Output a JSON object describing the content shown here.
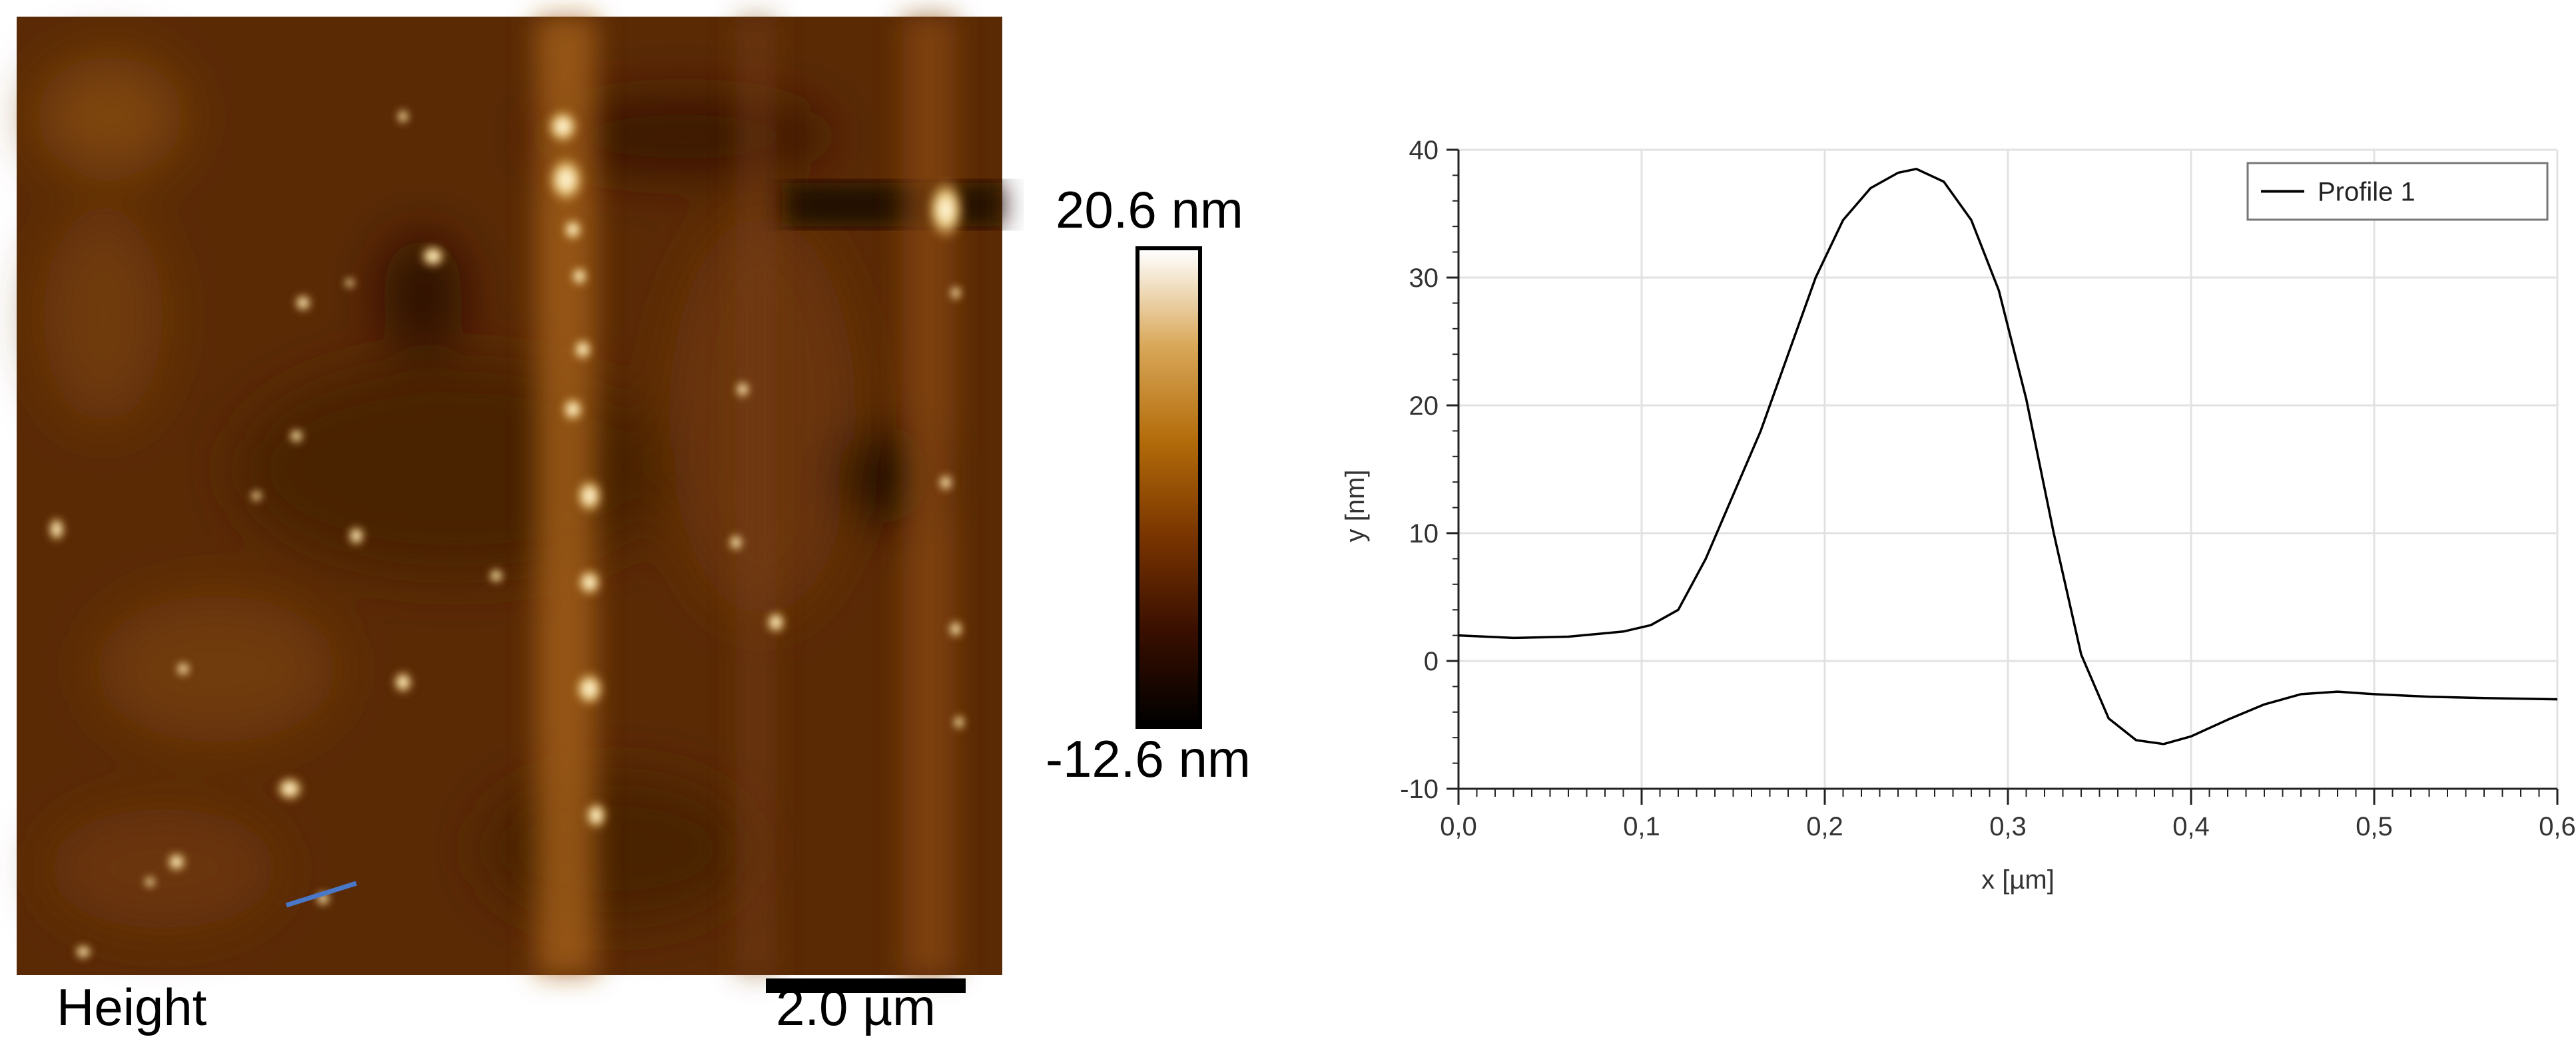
{
  "image_label": "Height",
  "scale_bar": {
    "label": "2.0 µm"
  },
  "colorbar": {
    "max_label": "20.6 nm",
    "min_label": "-12.6 nm",
    "colors": [
      "#000000",
      "#3a0f00",
      "#7a3500",
      "#b36c0a",
      "#d9a85a",
      "#ffffff"
    ]
  },
  "profile_line_color": "#4a78c8",
  "chart_data": {
    "type": "line",
    "xlabel": "x [µm]",
    "ylabel": "y [nm]",
    "xlim": [
      0,
      0.6
    ],
    "ylim": [
      -10,
      40
    ],
    "x_ticks": [
      "0,0",
      "0,1",
      "0,2",
      "0,3",
      "0,4",
      "0,5",
      "0,6"
    ],
    "y_ticks": [
      "40",
      "30",
      "20",
      "10",
      "0",
      "-10"
    ],
    "grid": true,
    "legend": "top-right",
    "series": [
      {
        "name": "Profile 1",
        "color": "#000000",
        "x": [
          0.0,
          0.03,
          0.06,
          0.09,
          0.105,
          0.12,
          0.135,
          0.15,
          0.165,
          0.18,
          0.195,
          0.21,
          0.225,
          0.24,
          0.25,
          0.265,
          0.28,
          0.295,
          0.31,
          0.325,
          0.34,
          0.355,
          0.37,
          0.385,
          0.4,
          0.42,
          0.44,
          0.46,
          0.48,
          0.5,
          0.53,
          0.56,
          0.6
        ],
        "y": [
          2.0,
          1.8,
          1.9,
          2.3,
          2.8,
          4.0,
          8.0,
          13.0,
          18.0,
          24.0,
          30.0,
          34.5,
          37.0,
          38.2,
          38.5,
          37.5,
          34.5,
          29.0,
          20.5,
          10.0,
          0.5,
          -4.5,
          -6.2,
          -6.5,
          -5.9,
          -4.6,
          -3.4,
          -2.6,
          -2.4,
          -2.6,
          -2.8,
          -2.9,
          -3.0
        ]
      }
    ]
  }
}
